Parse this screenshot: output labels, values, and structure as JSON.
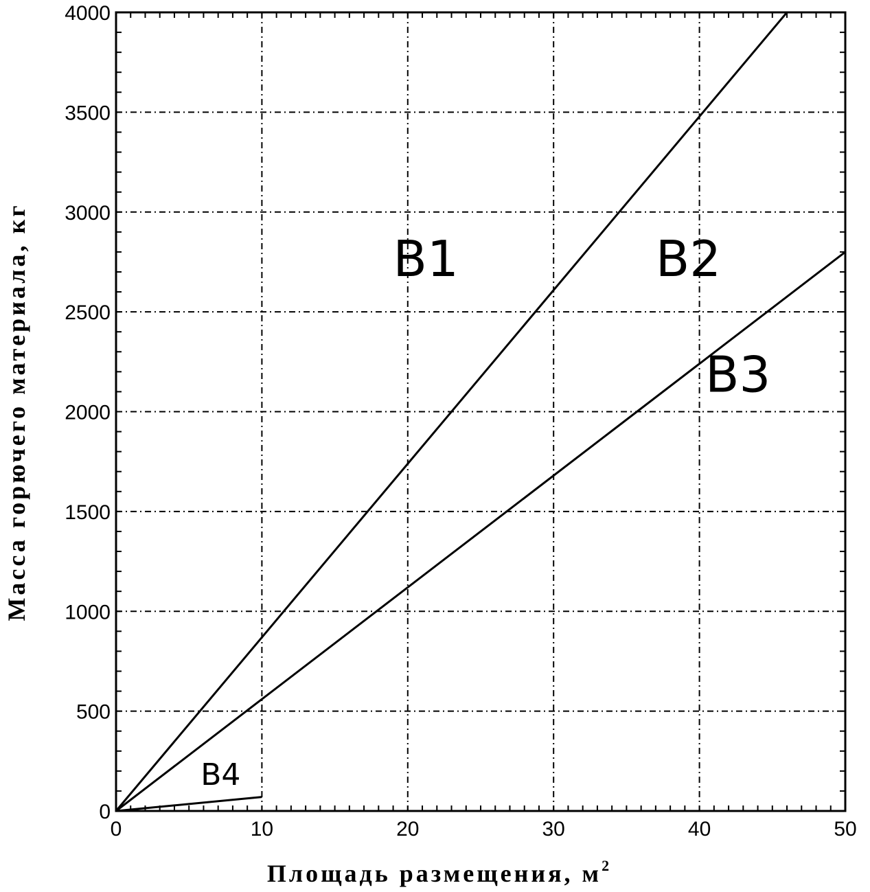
{
  "chart_data": {
    "type": "line",
    "title": "",
    "xlabel": "Площадь размещения, м",
    "xlabel_sup": "2",
    "ylabel": "Масса горючего материала, кг",
    "xlim": [
      0,
      50
    ],
    "ylim": [
      0,
      4000
    ],
    "x_ticks": [
      "0",
      "10",
      "20",
      "30",
      "40",
      "50"
    ],
    "y_ticks": [
      "0",
      "500",
      "1000",
      "1500",
      "2000",
      "2500",
      "3000",
      "3500",
      "4000"
    ],
    "grid": true,
    "series": [
      {
        "x": [
          0,
          46
        ],
        "y": [
          0,
          4000
        ]
      },
      {
        "x": [
          0,
          50
        ],
        "y": [
          0,
          2800
        ]
      },
      {
        "x": [
          0,
          10
        ],
        "y": [
          0,
          70
        ]
      }
    ],
    "annotations": [
      {
        "text": "В1",
        "x": 19,
        "y": 2680,
        "size": "large"
      },
      {
        "text": "В2",
        "x": 37,
        "y": 2680,
        "size": "large"
      },
      {
        "text": "В3",
        "x": 40.4,
        "y": 2100,
        "size": "large"
      },
      {
        "text": "В4",
        "x": 5.8,
        "y": 130,
        "size": "small"
      }
    ]
  }
}
